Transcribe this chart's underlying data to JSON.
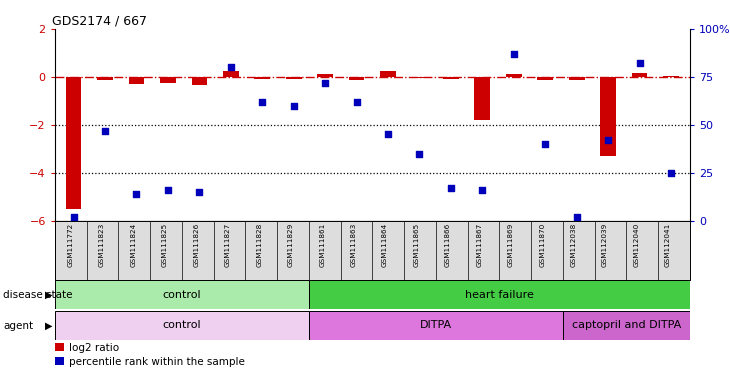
{
  "title": "GDS2174 / 667",
  "samples": [
    "GSM111772",
    "GSM111823",
    "GSM111824",
    "GSM111825",
    "GSM111826",
    "GSM111827",
    "GSM111828",
    "GSM111829",
    "GSM111861",
    "GSM111863",
    "GSM111864",
    "GSM111865",
    "GSM111866",
    "GSM111867",
    "GSM111869",
    "GSM111870",
    "GSM112038",
    "GSM112039",
    "GSM112040",
    "GSM112041"
  ],
  "log2_ratio": [
    -5.5,
    -0.15,
    -0.3,
    -0.25,
    -0.35,
    0.25,
    -0.1,
    -0.1,
    0.1,
    -0.15,
    0.25,
    -0.05,
    -0.1,
    -1.8,
    0.1,
    -0.15,
    -0.15,
    -3.3,
    0.15,
    0.05
  ],
  "percentile": [
    2,
    47,
    14,
    16,
    15,
    80,
    62,
    60,
    72,
    62,
    45,
    35,
    17,
    16,
    87,
    40,
    2,
    42,
    82,
    25
  ],
  "ylim_left": [
    -6,
    2
  ],
  "ylim_right": [
    0,
    100
  ],
  "yticks_left": [
    -6,
    -4,
    -2,
    0,
    2
  ],
  "yticks_right": [
    0,
    25,
    50,
    75,
    100
  ],
  "ytick_labels_right": [
    "0",
    "25",
    "50",
    "75",
    "100%"
  ],
  "dotted_lines": [
    -2,
    -4
  ],
  "bar_color": "#cc0000",
  "scatter_color": "#0000bb",
  "hline_color": "#cc0000",
  "disease_state_groups": [
    {
      "label": "control",
      "start": 0,
      "end": 8,
      "color": "#aaeaaa"
    },
    {
      "label": "heart failure",
      "start": 8,
      "end": 20,
      "color": "#44cc44"
    }
  ],
  "agent_groups": [
    {
      "label": "control",
      "start": 0,
      "end": 8,
      "color": "#f0d0f0"
    },
    {
      "label": "DITPA",
      "start": 8,
      "end": 16,
      "color": "#dd77dd"
    },
    {
      "label": "captopril and DITPA",
      "start": 16,
      "end": 20,
      "color": "#cc66cc"
    }
  ],
  "legend_bar_label": "log2 ratio",
  "legend_scatter_label": "percentile rank within the sample",
  "bar_color_legend": "#cc0000",
  "scatter_color_legend": "#0000bb",
  "background_color": "#ffffff",
  "tick_label_color_right": "#0000bb",
  "tick_label_color_left": "#cc0000",
  "label_disease_state": "disease state",
  "label_agent": "agent"
}
